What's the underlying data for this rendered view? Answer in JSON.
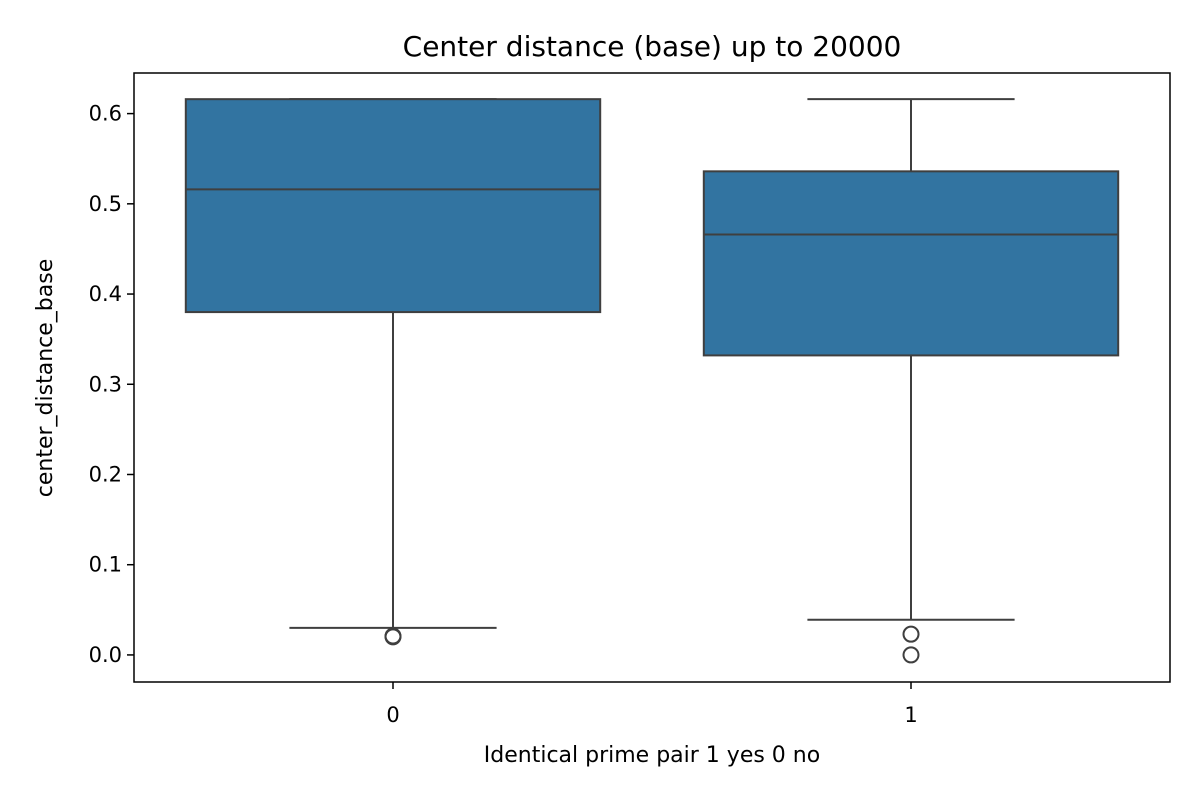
{
  "chart_data": {
    "type": "box",
    "title": "Center distance (base) up to 20000",
    "xlabel": "Identical prime pair 1 yes 0 no",
    "ylabel": "center_distance_base",
    "ylim": [
      -0.03,
      0.645
    ],
    "yticks": [
      0.0,
      0.1,
      0.2,
      0.3,
      0.4,
      0.5,
      0.6
    ],
    "ytick_labels": [
      "0.0",
      "0.1",
      "0.2",
      "0.3",
      "0.4",
      "0.5",
      "0.6"
    ],
    "categories": [
      "0",
      "1"
    ],
    "grid": false,
    "legend": "none",
    "boxes": [
      {
        "category": "0",
        "whisker_low": 0.03,
        "q1": 0.38,
        "median": 0.516,
        "q3": 0.616,
        "whisker_high": 0.616,
        "outliers": [
          0.021,
          0.02
        ]
      },
      {
        "category": "1",
        "whisker_low": 0.039,
        "q1": 0.332,
        "median": 0.466,
        "q3": 0.536,
        "whisker_high": 0.616,
        "outliers": [
          0.023,
          0.0
        ]
      }
    ],
    "colors": {
      "box_fill": "#3274a1",
      "line": "#3f3f3f",
      "axis": "#000000"
    }
  }
}
